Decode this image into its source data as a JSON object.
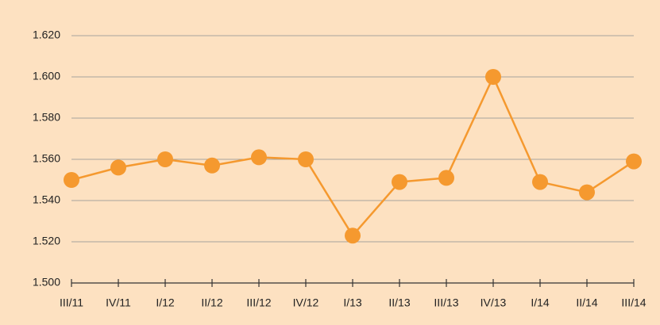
{
  "chart_data": {
    "type": "line",
    "categories": [
      "III/11",
      "IV/11",
      "I/12",
      "II/12",
      "III/12",
      "IV/12",
      "I/13",
      "II/13",
      "III/13",
      "IV/13",
      "I/14",
      "II/14",
      "III/14"
    ],
    "values": [
      1550,
      1556,
      1560,
      1557,
      1561,
      1560,
      1523,
      1549,
      1551,
      1600,
      1549,
      1544,
      1559
    ],
    "color": "#f5992f",
    "ylim": [
      1500,
      1620
    ],
    "yticks": [
      {
        "value": 1500,
        "label": "1.500"
      },
      {
        "value": 1520,
        "label": "1.520"
      },
      {
        "value": 1540,
        "label": "1.540"
      },
      {
        "value": 1560,
        "label": "1.560"
      },
      {
        "value": 1580,
        "label": "1.580"
      },
      {
        "value": 1600,
        "label": "1.600"
      },
      {
        "value": 1620,
        "label": "1.620"
      }
    ],
    "grid": true
  }
}
